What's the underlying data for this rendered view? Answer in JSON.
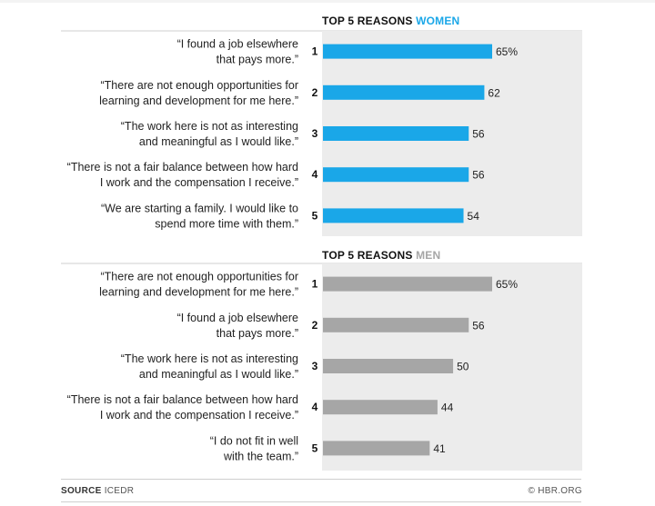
{
  "chart_data": [
    {
      "type": "bar",
      "title_prefix": "TOP 5 REASONS",
      "title_highlight": "WOMEN",
      "title_color": "#1aa7e8",
      "bar_color": "#1aa7e8",
      "value_suffix_first": "%",
      "xlim": [
        0,
        100
      ],
      "categories": [
        {
          "rank": "1",
          "lines": [
            "“I found a job elsewhere",
            "that pays more.”"
          ],
          "value": 65,
          "label": "65%"
        },
        {
          "rank": "2",
          "lines": [
            "“There are not enough opportunities for",
            "learning and development for me here.”"
          ],
          "value": 62,
          "label": "62"
        },
        {
          "rank": "3",
          "lines": [
            "“The work here is not as interesting",
            "and meaningful as I would like.”"
          ],
          "value": 56,
          "label": "56"
        },
        {
          "rank": "4",
          "lines": [
            "“There is not a fair balance between how hard",
            "I work and the compensation I receive.”"
          ],
          "value": 56,
          "label": "56"
        },
        {
          "rank": "5",
          "lines": [
            "“We are starting a family. I would like to",
            "spend more time with them.”"
          ],
          "value": 54,
          "label": "54"
        }
      ]
    },
    {
      "type": "bar",
      "title_prefix": "TOP 5 REASONS",
      "title_highlight": "MEN",
      "title_color": "#a6a6a6",
      "bar_color": "#a6a6a6",
      "xlim": [
        0,
        100
      ],
      "categories": [
        {
          "rank": "1",
          "lines": [
            "“There are not enough opportunities for",
            "learning and development for me here.”"
          ],
          "value": 65,
          "label": "65%"
        },
        {
          "rank": "2",
          "lines": [
            "“I found a job elsewhere",
            "that pays more.”"
          ],
          "value": 56,
          "label": "56"
        },
        {
          "rank": "3",
          "lines": [
            "“The work here is not as interesting",
            "and meaningful as I would like.”"
          ],
          "value": 50,
          "label": "50"
        },
        {
          "rank": "4",
          "lines": [
            "“There is not a fair balance between how hard",
            "I work and the compensation I receive.”"
          ],
          "value": 44,
          "label": "44"
        },
        {
          "rank": "5",
          "lines": [
            "“I do not fit in well",
            "with the team.”"
          ],
          "value": 41,
          "label": "41"
        }
      ]
    }
  ],
  "footer": {
    "source_label": "SOURCE",
    "source_value": "ICEDR",
    "credit": "© HBR.ORG"
  }
}
